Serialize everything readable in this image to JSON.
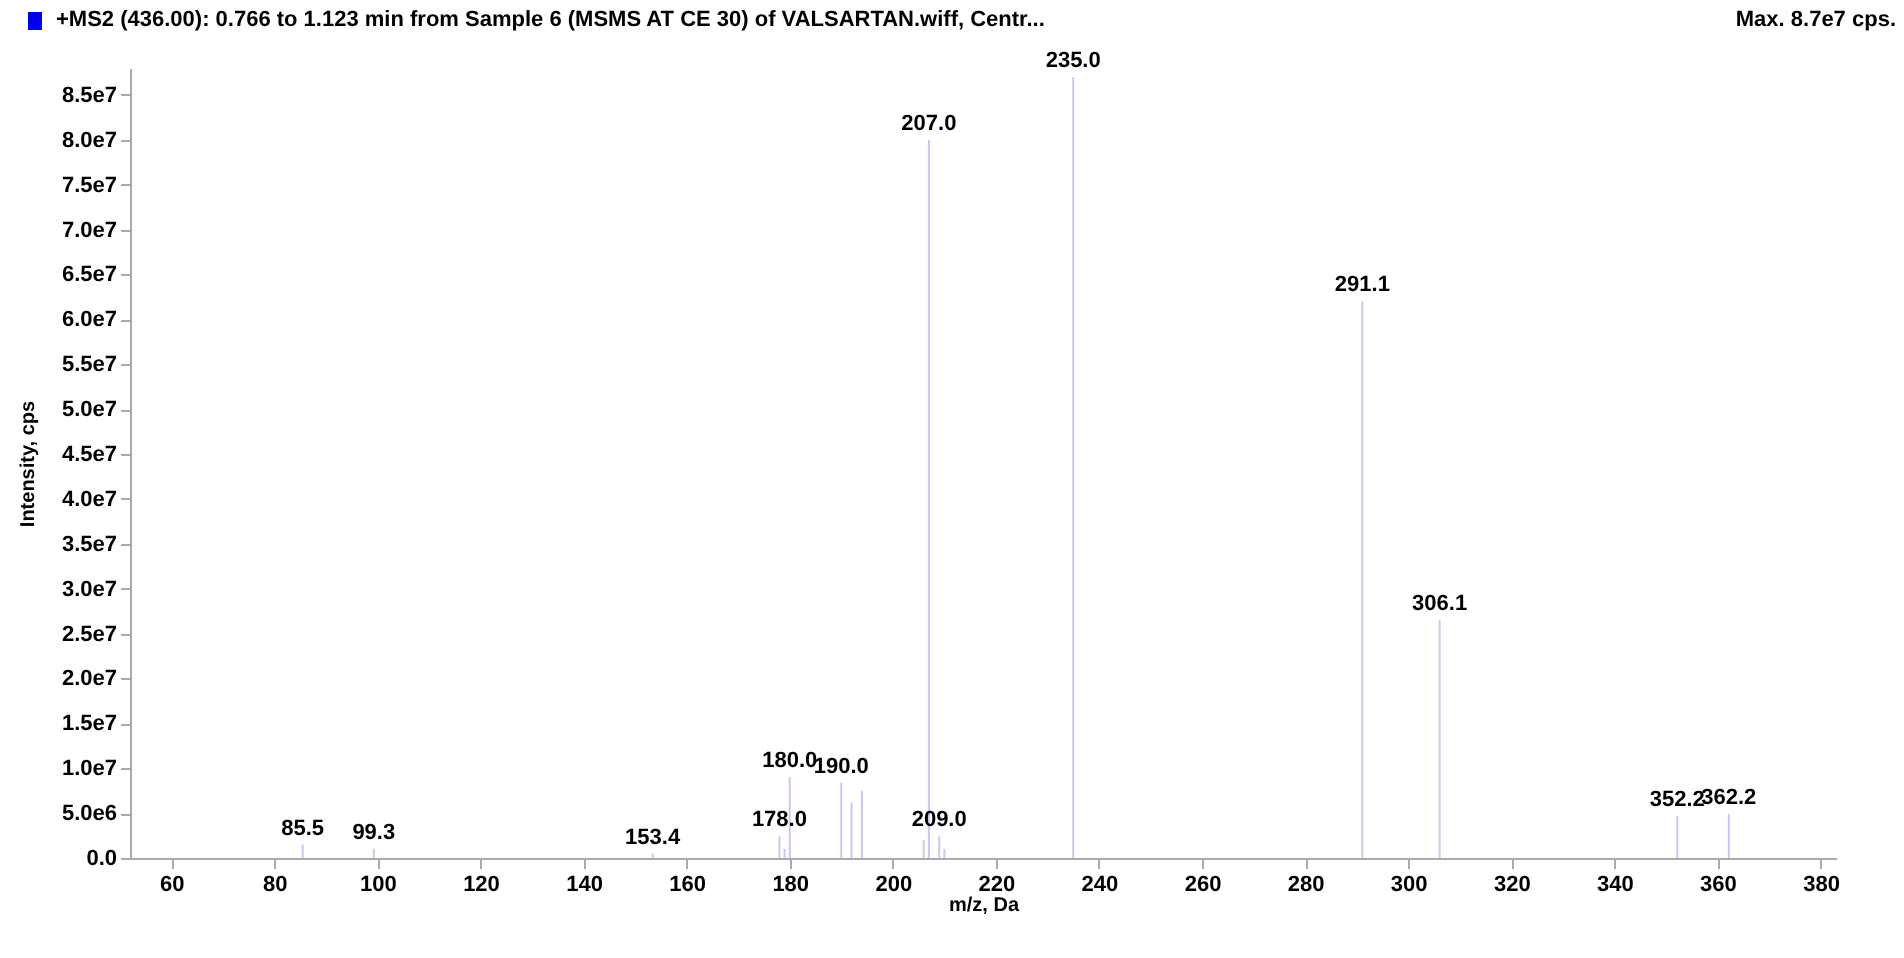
{
  "chart_data": {
    "type": "bar",
    "title": "+MS2 (436.00): 0.766 to 1.123 min from Sample 6 (MSMS AT CE 30) of VALSARTAN.wiff, Centr...",
    "xlabel": "m/z, Da",
    "ylabel": "Intensity, cps",
    "x": [
      85.5,
      99.3,
      153.4,
      178.0,
      179.0,
      180.0,
      190.0,
      192.0,
      194.0,
      206.0,
      207.0,
      209.0,
      210.0,
      235.0,
      291.1,
      306.1,
      352.2,
      362.2
    ],
    "series": [
      {
        "color": "#c8c8f2",
        "values": [
          1500000,
          1000000,
          500000,
          2400000,
          1000000,
          9000000,
          8400000,
          6200000,
          7500000,
          2000000,
          80000000,
          2400000,
          1000000,
          87000000,
          62000000,
          26500000,
          4700000,
          4900000
        ]
      }
    ],
    "xlim": [
      52,
      383
    ],
    "xticks": [
      60,
      80,
      100,
      120,
      140,
      160,
      180,
      200,
      220,
      240,
      260,
      280,
      300,
      320,
      340,
      360,
      380
    ],
    "ylim": [
      0,
      88000000
    ],
    "yticks": [
      {
        "value": 0,
        "label": "0.0"
      },
      {
        "value": 5000000,
        "label": "5.0e6"
      },
      {
        "value": 10000000,
        "label": "1.0e7"
      },
      {
        "value": 15000000,
        "label": "1.5e7"
      },
      {
        "value": 20000000,
        "label": "2.0e7"
      },
      {
        "value": 25000000,
        "label": "2.5e7"
      },
      {
        "value": 30000000,
        "label": "3.0e7"
      },
      {
        "value": 35000000,
        "label": "3.5e7"
      },
      {
        "value": 40000000,
        "label": "4.0e7"
      },
      {
        "value": 45000000,
        "label": "4.5e7"
      },
      {
        "value": 50000000,
        "label": "5.0e7"
      },
      {
        "value": 55000000,
        "label": "5.5e7"
      },
      {
        "value": 60000000,
        "label": "6.0e7"
      },
      {
        "value": 65000000,
        "label": "6.5e7"
      },
      {
        "value": 70000000,
        "label": "7.0e7"
      },
      {
        "value": 75000000,
        "label": "7.5e7"
      },
      {
        "value": 80000000,
        "label": "8.0e7"
      },
      {
        "value": 85000000,
        "label": "8.5e7"
      }
    ],
    "grid": false,
    "legend": false,
    "annotations": [
      "Max. 8.7e7 cps.",
      {
        "text": "85.5",
        "x": 85.5,
        "y": 1500000
      },
      {
        "text": "99.3",
        "x": 99.3,
        "y": 1000000
      },
      {
        "text": "153.4",
        "x": 153.4,
        "y": 500000
      },
      {
        "text": "178.0",
        "x": 178.0,
        "y": 2400000
      },
      {
        "text": "180.0",
        "x": 180.0,
        "y": 9000000
      },
      {
        "text": "190.0",
        "x": 190.0,
        "y": 8400000
      },
      {
        "text": "207.0",
        "x": 207.0,
        "y": 80000000
      },
      {
        "text": "209.0",
        "x": 209.0,
        "y": 2400000
      },
      {
        "text": "235.0",
        "x": 235.0,
        "y": 87000000
      },
      {
        "text": "291.1",
        "x": 291.1,
        "y": 62000000
      },
      {
        "text": "306.1",
        "x": 306.1,
        "y": 26500000
      },
      {
        "text": "352.2",
        "x": 352.2,
        "y": 4700000
      },
      {
        "text": "362.2",
        "x": 362.2,
        "y": 4900000
      }
    ]
  }
}
